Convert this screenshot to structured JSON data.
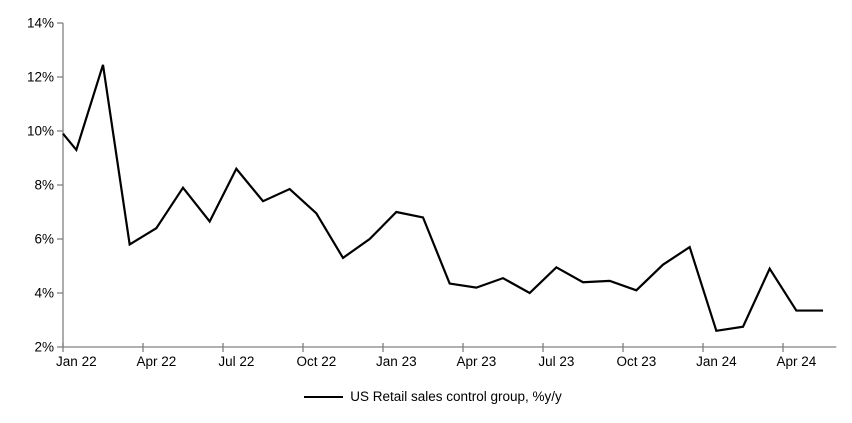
{
  "chart_data": {
    "type": "line",
    "legend": "US Retail sales control group, %y/y",
    "categories": [
      "Jan 22",
      "Feb 22",
      "Mar 22",
      "Apr 22",
      "May 22",
      "Jun 22",
      "Jul 22",
      "Aug 22",
      "Sep 22",
      "Oct 22",
      "Nov 22",
      "Dec 22",
      "Jan 23",
      "Feb 23",
      "Mar 23",
      "Apr 23",
      "May 23",
      "Jun 23",
      "Jul 23",
      "Aug 23",
      "Sep 23",
      "Oct 23",
      "Nov 23",
      "Dec 23",
      "Jan 24",
      "Feb 24",
      "Mar 24",
      "Apr 24",
      "May 24"
    ],
    "values": [
      9.3,
      12.45,
      5.8,
      6.4,
      7.9,
      6.65,
      8.6,
      7.4,
      7.85,
      6.95,
      5.3,
      6.0,
      7.0,
      6.8,
      4.35,
      4.2,
      4.55,
      4.0,
      4.95,
      4.4,
      4.45,
      4.1,
      5.05,
      5.7,
      2.6,
      2.75,
      4.9,
      3.35,
      3.35
    ],
    "edge_clip_value_at_left_axis": 9.9,
    "title": "",
    "xlabel": "",
    "ylabel": "",
    "ylim": [
      2,
      14
    ],
    "ytick_step": 2,
    "ytick_labels": [
      "2%",
      "4%",
      "6%",
      "8%",
      "10%",
      "12%",
      "14%"
    ],
    "xtick_labels": [
      "Jan 22",
      "Apr 22",
      "Jul 22",
      "Oct 22",
      "Jan 23",
      "Apr 23",
      "Jul 23",
      "Oct 23",
      "Jan 24",
      "Apr 24"
    ],
    "xtick_every_months": 3,
    "grid": "off",
    "legend_position": "bottom-center",
    "colors": {
      "line": "#000000",
      "axis": "#808080",
      "text": "#000000",
      "background": "#ffffff"
    }
  }
}
